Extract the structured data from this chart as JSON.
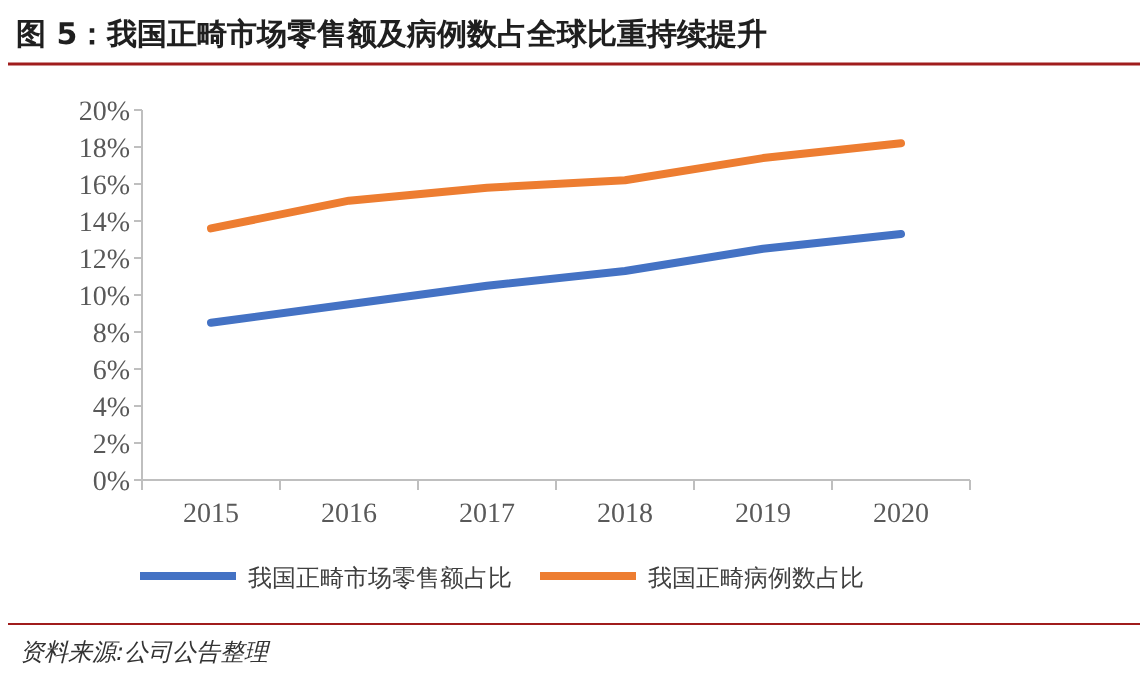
{
  "chart_data": {
    "type": "line",
    "title": "图 5：我国正畸市场零售额及病例数占全球比重持续提升",
    "categories": [
      "2015",
      "2016",
      "2017",
      "2018",
      "2019",
      "2020"
    ],
    "series": [
      {
        "name": "我国正畸市场零售额占比",
        "color": "#4472c4",
        "values": [
          8.5,
          9.5,
          10.5,
          11.3,
          12.5,
          13.3
        ]
      },
      {
        "name": "我国正畸病例数占比",
        "color": "#ed7d31",
        "values": [
          13.6,
          15.1,
          15.8,
          16.2,
          17.4,
          18.2
        ]
      }
    ],
    "ylim": [
      0,
      20
    ],
    "yticks": [
      {
        "value": 0,
        "label": "0%"
      },
      {
        "value": 2,
        "label": "2%"
      },
      {
        "value": 4,
        "label": "4%"
      },
      {
        "value": 6,
        "label": "6%"
      },
      {
        "value": 8,
        "label": "8%"
      },
      {
        "value": 10,
        "label": "10%"
      },
      {
        "value": 12,
        "label": "12%"
      },
      {
        "value": 14,
        "label": "14%"
      },
      {
        "value": 16,
        "label": "16%"
      },
      {
        "value": 18,
        "label": "18%"
      },
      {
        "value": 20,
        "label": "20%"
      }
    ],
    "grid": false,
    "legend": "bottom",
    "marker": "none",
    "line_style": "solid",
    "annotations": [
      "资料来源:公司公告整理"
    ]
  }
}
